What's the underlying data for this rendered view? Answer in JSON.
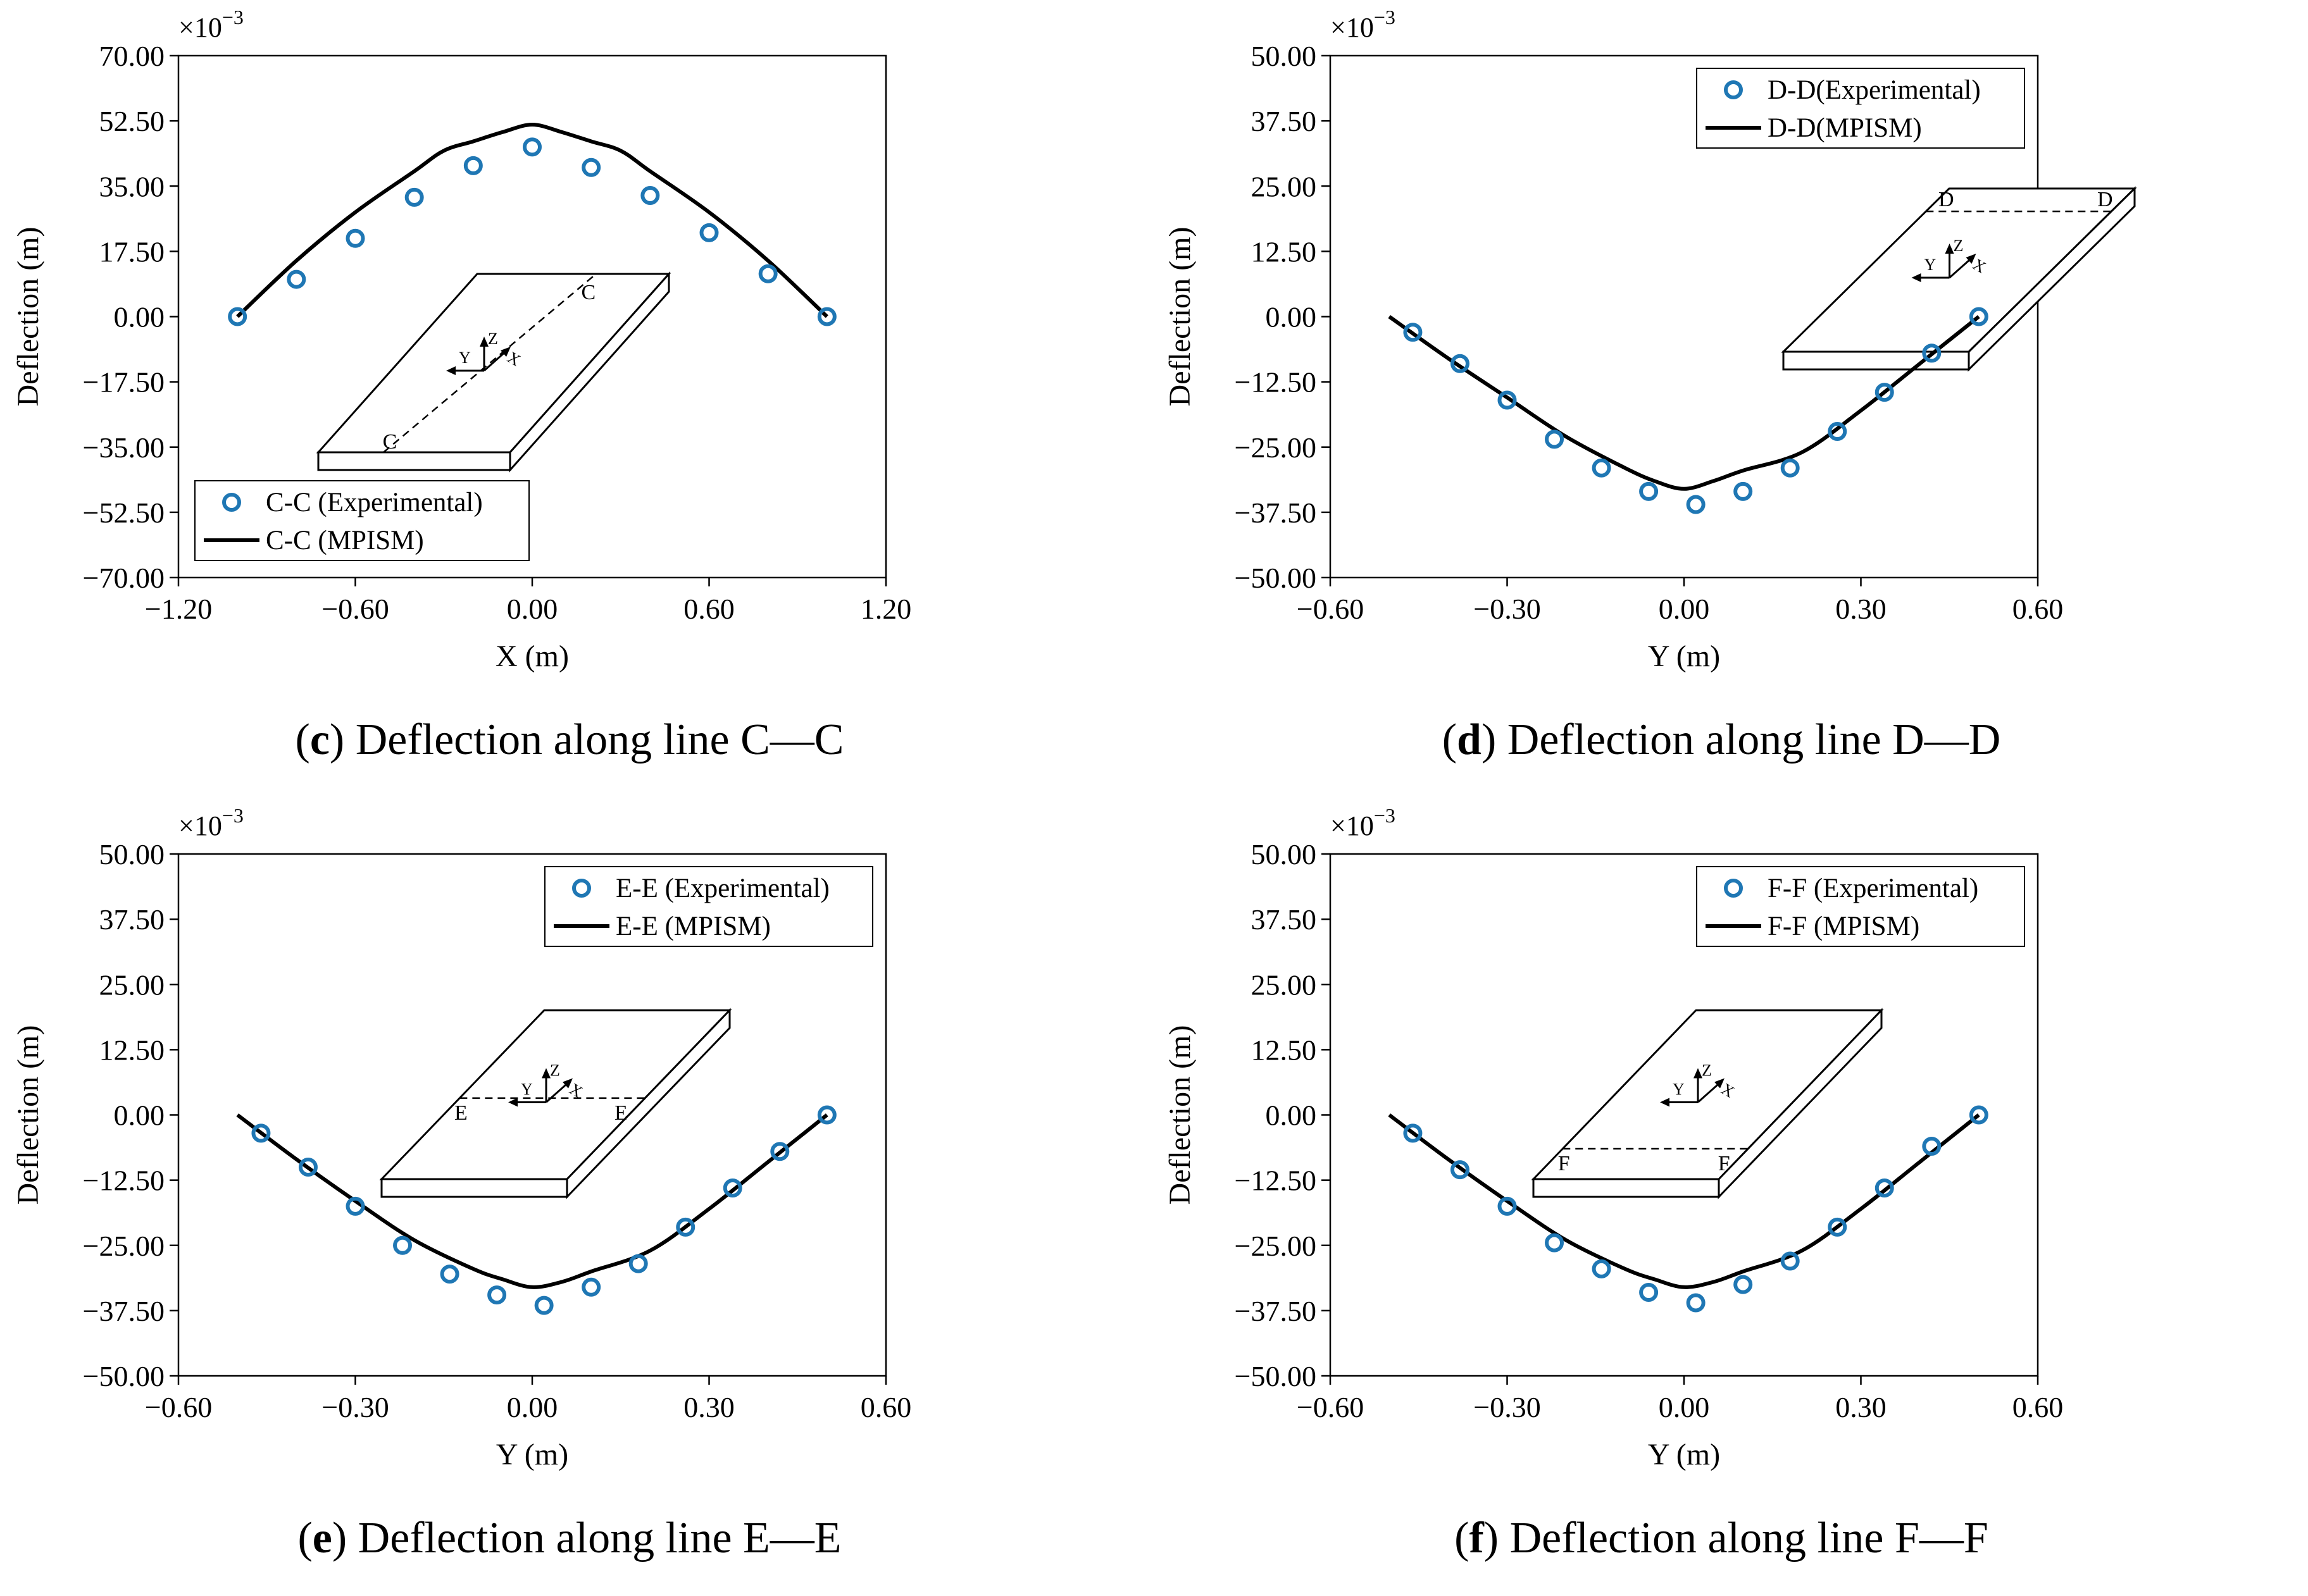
{
  "figure": {
    "colors": {
      "experimental": "#1f77b4",
      "model": "#000000"
    }
  },
  "chart_data": [
    {
      "type": "line",
      "panel_letter": "c",
      "caption_text": " Deflection along line C—C",
      "xlabel": "X (m)",
      "ylabel": "Deflection (m)",
      "scale_label": "×10",
      "scale_exponent": "−3",
      "xlim": [
        -1.2,
        1.2
      ],
      "ylim": [
        -70,
        70
      ],
      "xticks": [
        -1.2,
        -0.6,
        0.0,
        0.6,
        1.2
      ],
      "yticks": [
        -70,
        -52.5,
        -35,
        -17.5,
        0,
        17.5,
        35,
        52.5,
        70
      ],
      "xtick_labels": [
        "−1.20",
        "−0.60",
        "0.00",
        "0.60",
        "1.20"
      ],
      "ytick_labels": [
        "−70.00",
        "−52.50",
        "−35.00",
        "−17.50",
        "0.00",
        "17.50",
        "35.00",
        "52.50",
        "70.00"
      ],
      "legend_position": "bottom-left",
      "inset_label": "C",
      "inset_position": "bottom-center",
      "section_line": "diagonal",
      "series": [
        {
          "name": "C-C (Experimental)",
          "kind": "markers",
          "x": [
            -1.0,
            -0.8,
            -0.6,
            -0.4,
            -0.2,
            0.0,
            0.2,
            0.4,
            0.6,
            0.8,
            1.0
          ],
          "y": [
            0.0,
            10.0,
            21.0,
            32.0,
            40.5,
            45.5,
            40.0,
            32.5,
            22.5,
            11.5,
            0.0
          ]
        },
        {
          "name": "C-C (MPISM)",
          "kind": "line",
          "x": [
            -1.0,
            -0.8,
            -0.6,
            -0.4,
            -0.3,
            -0.2,
            -0.1,
            0.0,
            0.1,
            0.2,
            0.3,
            0.4,
            0.6,
            0.8,
            1.0
          ],
          "y": [
            0.0,
            15.0,
            28.0,
            39.0,
            44.5,
            47.0,
            49.5,
            51.5,
            49.5,
            47.0,
            44.5,
            39.0,
            28.0,
            15.0,
            0.0
          ]
        }
      ]
    },
    {
      "type": "line",
      "panel_letter": "d",
      "caption_text": " Deflection along line D—D",
      "xlabel": "Y (m)",
      "ylabel": "Deflection (m)",
      "scale_label": "×10",
      "scale_exponent": "−3",
      "xlim": [
        -0.6,
        0.6
      ],
      "ylim": [
        -50,
        50
      ],
      "xticks": [
        -0.6,
        -0.3,
        0.0,
        0.3,
        0.6
      ],
      "yticks": [
        -50,
        -37.5,
        -25,
        -12.5,
        0,
        12.5,
        25,
        37.5,
        50
      ],
      "xtick_labels": [
        "−0.60",
        "−0.30",
        "0.00",
        "0.30",
        "0.60"
      ],
      "ytick_labels": [
        "−50.00",
        "−37.50",
        "−25.00",
        "−12.50",
        "0.00",
        "12.50",
        "25.00",
        "37.50",
        "50.00"
      ],
      "legend_position": "top-right",
      "inset_label": "D",
      "inset_position": "upper-right",
      "section_line": "far",
      "series": [
        {
          "name": "D-D(Experimental)",
          "kind": "markers",
          "x": [
            -0.46,
            -0.38,
            -0.3,
            -0.22,
            -0.14,
            -0.06,
            0.02,
            0.1,
            0.18,
            0.26,
            0.34,
            0.42,
            0.5
          ],
          "y": [
            -3.0,
            -9.0,
            -16.0,
            -23.5,
            -29.0,
            -33.5,
            -36.0,
            -33.5,
            -29.0,
            -22.0,
            -14.5,
            -7.0,
            0.0
          ]
        },
        {
          "name": "D-D(MPISM)",
          "kind": "line",
          "x": [
            -0.5,
            -0.4,
            -0.3,
            -0.2,
            -0.1,
            -0.05,
            0.0,
            0.05,
            0.1,
            0.2,
            0.3,
            0.4,
            0.5
          ],
          "y": [
            0.0,
            -8.0,
            -15.5,
            -23.0,
            -29.0,
            -31.5,
            -33.0,
            -31.5,
            -29.5,
            -26.0,
            -18.0,
            -9.0,
            0.0
          ]
        }
      ]
    },
    {
      "type": "line",
      "panel_letter": "e",
      "caption_text": " Deflection along line E—E",
      "xlabel": "Y (m)",
      "ylabel": "Deflection (m)",
      "scale_label": "×10",
      "scale_exponent": "−3",
      "xlim": [
        -0.6,
        0.6
      ],
      "ylim": [
        -50,
        50
      ],
      "xticks": [
        -0.6,
        -0.3,
        0.0,
        0.3,
        0.6
      ],
      "yticks": [
        -50,
        -37.5,
        -25,
        -12.5,
        0,
        12.5,
        25,
        37.5,
        50
      ],
      "xtick_labels": [
        "−0.60",
        "−0.30",
        "0.00",
        "0.30",
        "0.60"
      ],
      "ytick_labels": [
        "−50.00",
        "−37.50",
        "−25.00",
        "−12.50",
        "0.00",
        "12.50",
        "25.00",
        "37.50",
        "50.00"
      ],
      "legend_position": "top-right",
      "inset_label": "E",
      "inset_position": "center",
      "section_line": "middle",
      "series": [
        {
          "name": "E-E (Experimental)",
          "kind": "markers",
          "x": [
            -0.46,
            -0.38,
            -0.3,
            -0.22,
            -0.14,
            -0.06,
            0.02,
            0.1,
            0.18,
            0.26,
            0.34,
            0.42,
            0.5
          ],
          "y": [
            -3.5,
            -10.0,
            -17.5,
            -25.0,
            -30.5,
            -34.5,
            -36.5,
            -33.0,
            -28.5,
            -21.5,
            -14.0,
            -7.0,
            0.0
          ]
        },
        {
          "name": "E-E (MPISM)",
          "kind": "line",
          "x": [
            -0.5,
            -0.4,
            -0.3,
            -0.2,
            -0.1,
            -0.05,
            0.0,
            0.05,
            0.1,
            0.2,
            0.3,
            0.4,
            0.5
          ],
          "y": [
            0.0,
            -8.5,
            -16.5,
            -24.0,
            -29.5,
            -31.5,
            -33.0,
            -32.0,
            -30.0,
            -26.0,
            -18.0,
            -9.0,
            0.0
          ]
        }
      ]
    },
    {
      "type": "line",
      "panel_letter": "f",
      "caption_text": " Deflection along line F—F",
      "xlabel": "Y (m)",
      "ylabel": "Deflection (m)",
      "scale_label": "×10",
      "scale_exponent": "−3",
      "xlim": [
        -0.6,
        0.6
      ],
      "ylim": [
        -50,
        50
      ],
      "xticks": [
        -0.6,
        -0.3,
        0.0,
        0.3,
        0.6
      ],
      "yticks": [
        -50,
        -37.5,
        -25,
        -12.5,
        0,
        12.5,
        25,
        37.5,
        50
      ],
      "xtick_labels": [
        "−0.60",
        "−0.30",
        "0.00",
        "0.30",
        "0.60"
      ],
      "ytick_labels": [
        "−50.00",
        "−37.50",
        "−25.00",
        "−12.50",
        "0.00",
        "12.50",
        "25.00",
        "37.50",
        "50.00"
      ],
      "legend_position": "top-right",
      "inset_label": "F",
      "inset_position": "center",
      "section_line": "near",
      "series": [
        {
          "name": "F-F (Experimental)",
          "kind": "markers",
          "x": [
            -0.46,
            -0.38,
            -0.3,
            -0.22,
            -0.14,
            -0.06,
            0.02,
            0.1,
            0.18,
            0.26,
            0.34,
            0.42,
            0.5
          ],
          "y": [
            -3.5,
            -10.5,
            -17.5,
            -24.5,
            -29.5,
            -34.0,
            -36.0,
            -32.5,
            -28.0,
            -21.5,
            -14.0,
            -6.0,
            0.0
          ]
        },
        {
          "name": "F-F (MPISM)",
          "kind": "line",
          "x": [
            -0.5,
            -0.4,
            -0.3,
            -0.2,
            -0.1,
            -0.05,
            0.0,
            0.05,
            0.1,
            0.2,
            0.3,
            0.4,
            0.5
          ],
          "y": [
            0.0,
            -8.5,
            -16.5,
            -24.0,
            -29.5,
            -31.5,
            -33.0,
            -32.0,
            -30.0,
            -26.0,
            -18.0,
            -9.0,
            0.0
          ]
        }
      ]
    }
  ]
}
